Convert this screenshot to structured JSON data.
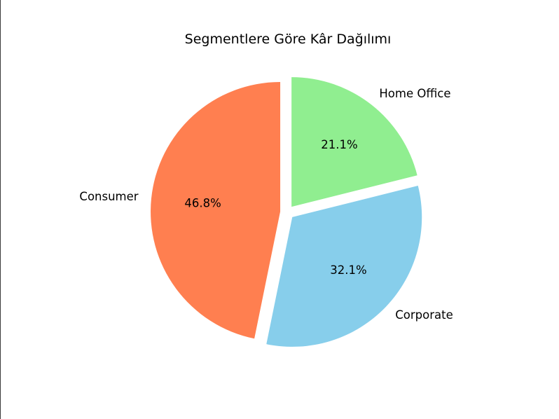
{
  "chart_data": {
    "type": "pie",
    "title": "Segmentlere Göre Kâr Dağılımı",
    "categories": [
      "Home Office",
      "Corporate",
      "Consumer"
    ],
    "values": [
      21.1,
      32.1,
      46.8
    ],
    "percent_labels": [
      "21.1%",
      "32.1%",
      "46.8%"
    ],
    "colors": [
      "#90ee90",
      "#87ceeb",
      "#ff7f50"
    ],
    "exploded": true,
    "start_angle_deg": 90,
    "direction": "clockwise",
    "legend": "none"
  }
}
